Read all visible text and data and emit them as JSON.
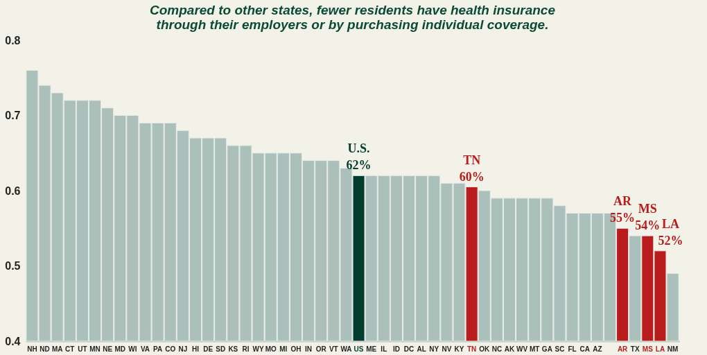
{
  "chart_data": {
    "type": "bar",
    "subtitle": [
      "Compared to other states, fewer residents have health insurance",
      "through their employers or by purchasing individual coverage."
    ],
    "categories": [
      "NH",
      "ND",
      "MA",
      "CT",
      "UT",
      "MN",
      "NE",
      "MD",
      "WI",
      "VA",
      "PA",
      "CO",
      "NJ",
      "HI",
      "DE",
      "SD",
      "KS",
      "RI",
      "WY",
      "MO",
      "MI",
      "OH",
      "IN",
      "OR",
      "VT",
      "WA",
      "US",
      "ME",
      "IL",
      "ID",
      "DC",
      "AL",
      "NY",
      "NV",
      "KY",
      "TN",
      "OK",
      "NC",
      "AK",
      "WV",
      "MT",
      "GA",
      "SC",
      "FL",
      "CA",
      "AZ",
      null,
      "AR",
      "TX",
      "MS",
      "LA",
      "NM"
    ],
    "values": [
      0.76,
      0.74,
      0.73,
      0.72,
      0.72,
      0.72,
      0.71,
      0.7,
      0.7,
      0.69,
      0.69,
      0.69,
      0.68,
      0.67,
      0.67,
      0.67,
      0.66,
      0.66,
      0.65,
      0.65,
      0.65,
      0.65,
      0.64,
      0.64,
      0.64,
      0.63,
      0.62,
      0.62,
      0.62,
      0.62,
      0.62,
      0.62,
      0.62,
      0.61,
      0.61,
      0.605,
      0.6,
      0.59,
      0.59,
      0.59,
      0.59,
      0.59,
      0.58,
      0.57,
      0.57,
      0.57,
      0.57,
      0.55,
      0.54,
      0.54,
      0.52,
      0.49
    ],
    "colors": [
      "#abbfbb",
      "#abbfbb",
      "#abbfbb",
      "#abbfbb",
      "#abbfbb",
      "#abbfbb",
      "#abbfbb",
      "#abbfbb",
      "#abbfbb",
      "#abbfbb",
      "#abbfbb",
      "#abbfbb",
      "#abbfbb",
      "#abbfbb",
      "#abbfbb",
      "#abbfbb",
      "#abbfbb",
      "#abbfbb",
      "#abbfbb",
      "#abbfbb",
      "#abbfbb",
      "#abbfbb",
      "#abbfbb",
      "#abbfbb",
      "#abbfbb",
      "#abbfbb",
      "#003d2e",
      "#abbfbb",
      "#abbfbb",
      "#abbfbb",
      "#abbfbb",
      "#abbfbb",
      "#abbfbb",
      "#abbfbb",
      "#abbfbb",
      "#b81c1c",
      "#abbfbb",
      "#abbfbb",
      "#abbfbb",
      "#abbfbb",
      "#abbfbb",
      "#abbfbb",
      "#abbfbb",
      "#abbfbb",
      "#abbfbb",
      "#abbfbb",
      "#abbfbb",
      "#b81c1c",
      "#abbfbb",
      "#b81c1c",
      "#b81c1c",
      "#abbfbb"
    ],
    "value_labels": [
      null,
      null,
      null,
      null,
      null,
      null,
      null,
      null,
      null,
      null,
      null,
      null,
      null,
      null,
      null,
      null,
      null,
      null,
      null,
      null,
      null,
      null,
      null,
      null,
      null,
      null,
      "62%",
      null,
      null,
      null,
      null,
      null,
      null,
      null,
      null,
      "60%",
      null,
      null,
      null,
      null,
      null,
      null,
      null,
      null,
      null,
      null,
      null,
      "55%",
      null,
      "54%",
      "52%",
      null
    ],
    "annotations": [
      {
        "text": "U.S.",
        "x": "US",
        "y": 0.62
      },
      {
        "text": "TN",
        "x": "TN",
        "y": 0.605
      },
      {
        "text": "AR",
        "x": "AR",
        "y": 0.55
      },
      {
        "text": "MS",
        "x": "MS",
        "y": 0.54
      },
      {
        "text": "LA",
        "x": "LA",
        "y": 0.52
      }
    ],
    "ylim": [
      0.4,
      0.8
    ],
    "yticks": [
      0.4,
      0.5,
      0.6,
      0.7,
      0.8
    ],
    "grid": false
  }
}
